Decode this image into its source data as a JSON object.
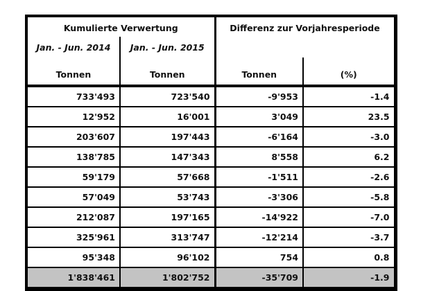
{
  "table": {
    "header": {
      "group_left": "Kumulierte Verwertung",
      "group_right": "Differenz zur Vorjahresperiode",
      "period_2014": "Jan. - Jun. 2014",
      "period_2015": "Jan. - Jun. 2015",
      "unit_col1": "Tonnen",
      "unit_col2": "Tonnen",
      "unit_col3": "Tonnen",
      "unit_col4": "(%)"
    },
    "rows": [
      [
        "733'493",
        "723'540",
        "-9'953",
        "-1.4"
      ],
      [
        "12'952",
        "16'001",
        "3'049",
        "23.5"
      ],
      [
        "203'607",
        "197'443",
        "-6'164",
        "-3.0"
      ],
      [
        "138'785",
        "147'343",
        "8'558",
        "6.2"
      ],
      [
        "59'179",
        "57'668",
        "-1'511",
        "-2.6"
      ],
      [
        "57'049",
        "53'743",
        "-3'306",
        "-5.8"
      ],
      [
        "212'087",
        "197'165",
        "-14'922",
        "-7.0"
      ],
      [
        "325'961",
        "313'747",
        "-12'214",
        "-3.7"
      ],
      [
        "95'348",
        "96'102",
        "754",
        "0.8"
      ]
    ],
    "total_row": [
      "1'838'461",
      "1'802'752",
      "-35'709",
      "-1.9"
    ],
    "colors": {
      "border": "#000000",
      "text": "#111111",
      "total_row_bg": "#c3c3c3"
    }
  },
  "chart_data": {
    "type": "table",
    "title": "Kumulierte Verwertung / Differenz zur Vorjahresperiode",
    "columns": [
      "Kumulierte Verwertung Jan. - Jun. 2014 (Tonnen)",
      "Kumulierte Verwertung Jan. - Jun. 2015 (Tonnen)",
      "Differenz zur Vorjahresperiode (Tonnen)",
      "Differenz zur Vorjahresperiode (%)"
    ],
    "rows": [
      [
        733493,
        723540,
        -9953,
        -1.4
      ],
      [
        12952,
        16001,
        3049,
        23.5
      ],
      [
        203607,
        197443,
        -6164,
        -3.0
      ],
      [
        138785,
        147343,
        8558,
        6.2
      ],
      [
        59179,
        57668,
        -1511,
        -2.6
      ],
      [
        57049,
        53743,
        -3306,
        -5.8
      ],
      [
        212087,
        197165,
        -14922,
        -7.0
      ],
      [
        325961,
        313747,
        -12214,
        -3.7
      ],
      [
        95348,
        96102,
        754,
        0.8
      ]
    ],
    "total": [
      1838461,
      1802752,
      -35709,
      -1.9
    ],
    "number_format": "Swiss apostrophe thousands separator",
    "layout": "total row highlighted gray at bottom"
  }
}
